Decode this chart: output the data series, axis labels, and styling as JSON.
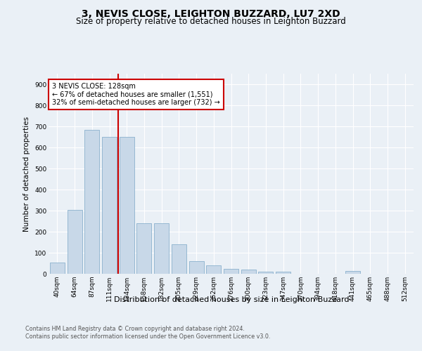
{
  "title1": "3, NEVIS CLOSE, LEIGHTON BUZZARD, LU7 2XD",
  "title2": "Size of property relative to detached houses in Leighton Buzzard",
  "xlabel": "Distribution of detached houses by size in Leighton Buzzard",
  "ylabel": "Number of detached properties",
  "categories": [
    "40sqm",
    "64sqm",
    "87sqm",
    "111sqm",
    "134sqm",
    "158sqm",
    "182sqm",
    "205sqm",
    "229sqm",
    "252sqm",
    "276sqm",
    "300sqm",
    "323sqm",
    "347sqm",
    "370sqm",
    "394sqm",
    "418sqm",
    "441sqm",
    "465sqm",
    "488sqm",
    "512sqm"
  ],
  "values": [
    55,
    305,
    685,
    650,
    650,
    240,
    240,
    140,
    60,
    40,
    25,
    20,
    10,
    10,
    0,
    0,
    0,
    15,
    0,
    0,
    0
  ],
  "bar_color": "#c8d8e8",
  "bar_edge_color": "#7ba7c7",
  "highlight_line_color": "#cc0000",
  "annotation_text": "3 NEVIS CLOSE: 128sqm\n← 67% of detached houses are smaller (1,551)\n32% of semi-detached houses are larger (732) →",
  "annotation_box_color": "#ffffff",
  "annotation_border_color": "#cc0000",
  "ylim": [
    0,
    950
  ],
  "yticks": [
    0,
    100,
    200,
    300,
    400,
    500,
    600,
    700,
    800,
    900
  ],
  "footer1": "Contains HM Land Registry data © Crown copyright and database right 2024.",
  "footer2": "Contains public sector information licensed under the Open Government Licence v3.0.",
  "bg_color": "#eaf0f6",
  "plot_bg_color": "#eaf0f6",
  "title1_fontsize": 10,
  "title2_fontsize": 8.5,
  "tick_fontsize": 6.5,
  "ylabel_fontsize": 7.5,
  "xlabel_fontsize": 8,
  "footer_fontsize": 5.8
}
